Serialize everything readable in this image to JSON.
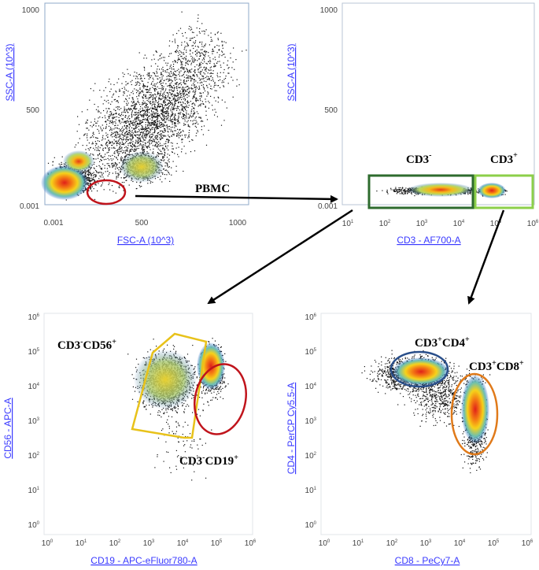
{
  "panels": {
    "top_left": {
      "x_label": "FSC-A (10^3)",
      "y_label": "SSC-A (10^3)",
      "x_ticks": [
        "0.001",
        "500",
        "1000"
      ],
      "y_ticks": [
        "1000",
        "500",
        "0.001"
      ],
      "gate_label": "PBMC"
    },
    "top_right": {
      "x_label": "CD3 - AF700-A",
      "y_label": "SSC-A (10^3)",
      "y_ticks": [
        "1000",
        "500",
        "0.001"
      ],
      "gate_neg_main": "CD3",
      "gate_neg_sup": "-",
      "gate_pos_main": "CD3",
      "gate_pos_sup": "+"
    },
    "bottom_left": {
      "x_label": "CD19 - APC-eFluor780-A",
      "y_label": "CD56 - APC-A",
      "gate_nk": [
        "CD3",
        "-",
        "CD56",
        "+"
      ],
      "gate_b": [
        "CD3",
        "-",
        "CD19",
        "+"
      ]
    },
    "bottom_right": {
      "x_label": "CD8 - PeCy7-A",
      "y_label": "CD4 - PerCP Cy5.5-A",
      "gate_cd4": [
        "CD3",
        "+",
        "CD4",
        "+"
      ],
      "gate_cd8": [
        "CD3",
        "+",
        "CD8",
        "+"
      ]
    }
  },
  "log_ticks": {
    "base": "10",
    "exponents": [
      "0",
      "1",
      "2",
      "3",
      "4",
      "5",
      "6"
    ]
  },
  "colors": {
    "axis_label": "#3a3aff",
    "gate_red": "#c0141c",
    "gate_dark_green": "#2e6b2e",
    "gate_light_green": "#8ccf4a",
    "gate_yellow": "#e8c21a",
    "gate_blue": "#2a4f8a",
    "gate_orange": "#e07a1a"
  }
}
